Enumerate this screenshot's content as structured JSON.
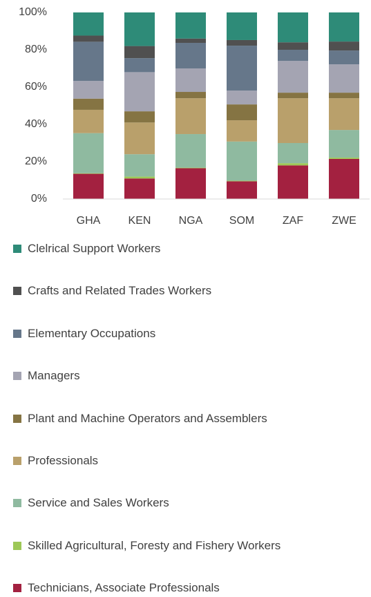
{
  "chart_data": {
    "type": "stacked_bar",
    "categories": [
      "GHA",
      "KEN",
      "NGA",
      "SOM",
      "ZAF",
      "ZWE"
    ],
    "ylim": [
      0,
      100
    ],
    "yticks": [
      {
        "value": 0,
        "label": "0%"
      },
      {
        "value": 20,
        "label": "20%"
      },
      {
        "value": 40,
        "label": "40%"
      },
      {
        "value": 60,
        "label": "60%"
      },
      {
        "value": 80,
        "label": "80%"
      },
      {
        "value": 100,
        "label": "100%"
      }
    ],
    "series": [
      {
        "name": "Clelrical Support Workers",
        "color": "#2e8b78",
        "values": [
          12.4,
          18,
          14,
          14.8,
          16,
          15.6
        ]
      },
      {
        "name": "Crafts and Related Trades Workers",
        "color": "#505050",
        "values": [
          3.3,
          6.5,
          2.3,
          3,
          4,
          4.8
        ]
      },
      {
        "name": "Elementary Occupations",
        "color": "#66778a",
        "values": [
          21,
          7.5,
          13.7,
          24.1,
          6,
          7.4
        ]
      },
      {
        "name": "Managers",
        "color": "#a4a4b2",
        "values": [
          9.5,
          21,
          12.6,
          7.4,
          17,
          15.2
        ]
      },
      {
        "name": "Plant and Machine Operators and Assemblers",
        "color": "#857443",
        "values": [
          6,
          6,
          3.4,
          8.5,
          3,
          3
        ]
      },
      {
        "name": "Professionals",
        "color": "#b9a06b",
        "values": [
          12.5,
          17,
          19.2,
          11.4,
          24,
          17
        ]
      },
      {
        "name": "Service and Sales Workers",
        "color": "#8fbaa0",
        "values": [
          21.5,
          12,
          18,
          21,
          10.8,
          14.8
        ]
      },
      {
        "name": "Skilled Agricultural, Foresty and Fishery Workers",
        "color": "#9dc857",
        "values": [
          0.3,
          1,
          0.3,
          0.3,
          1.2,
          0.7
        ]
      },
      {
        "name": "Technicians, Associate Professionals",
        "color": "#a32140",
        "values": [
          13.5,
          11,
          16.5,
          9.5,
          18,
          21.5
        ]
      }
    ]
  }
}
